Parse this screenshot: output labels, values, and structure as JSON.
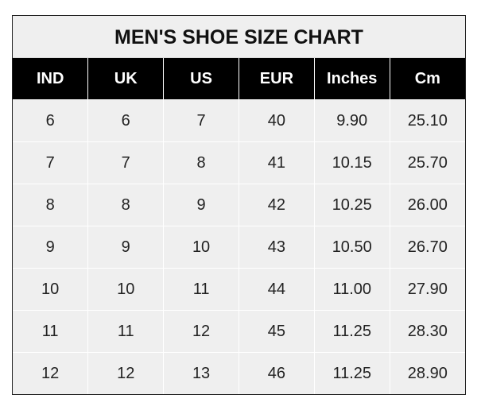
{
  "title": "MEN'S SHOE SIZE CHART",
  "columns": [
    "IND",
    "UK",
    "US",
    "EUR",
    "Inches",
    "Cm"
  ],
  "rows": [
    [
      "6",
      "6",
      "7",
      "40",
      "9.90",
      "25.10"
    ],
    [
      "7",
      "7",
      "8",
      "41",
      "10.15",
      "25.70"
    ],
    [
      "8",
      "8",
      "9",
      "42",
      "10.25",
      "26.00"
    ],
    [
      "9",
      "9",
      "10",
      "43",
      "10.50",
      "26.70"
    ],
    [
      "10",
      "10",
      "11",
      "44",
      "11.00",
      "27.90"
    ],
    [
      "11",
      "11",
      "12",
      "45",
      "11.25",
      "28.30"
    ],
    [
      "12",
      "12",
      "13",
      "46",
      "11.25",
      "28.90"
    ]
  ],
  "colors": {
    "header_bg": "#000000",
    "header_text": "#ffffff",
    "cell_bg": "#efefef"
  }
}
